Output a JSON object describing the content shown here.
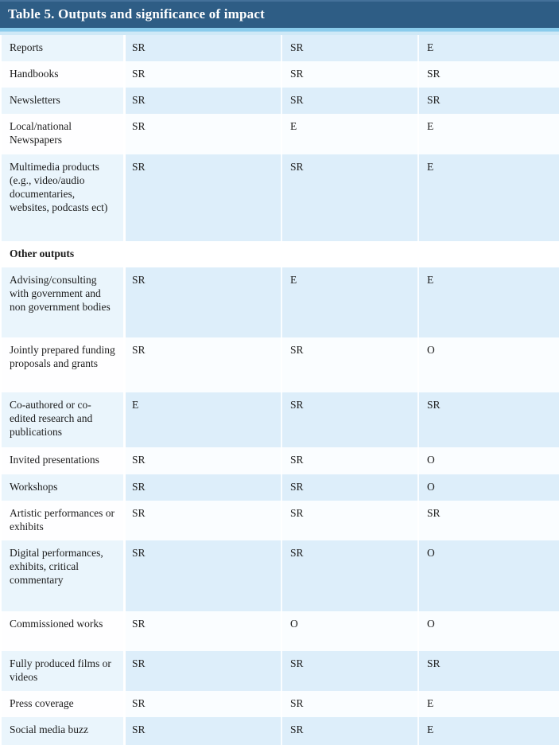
{
  "title_bar": {
    "title": "Table 5. Outputs and significance of impact"
  },
  "table": {
    "value_columns": 3,
    "rows": [
      {
        "type": "data",
        "label": "Reports",
        "values": [
          "SR",
          "SR",
          "E"
        ]
      },
      {
        "type": "data",
        "label": "Handbooks",
        "values": [
          "SR",
          "SR",
          "SR"
        ]
      },
      {
        "type": "data",
        "label": "Newsletters",
        "values": [
          "SR",
          "SR",
          "SR"
        ]
      },
      {
        "type": "data",
        "label": "Local/national Newspapers",
        "values": [
          "SR",
          "E",
          "E"
        ]
      },
      {
        "type": "data",
        "label": "Multimedia products (e.g., video/audio documentaries, websites, podcasts ect)",
        "values": [
          "SR",
          "SR",
          "E"
        ]
      },
      {
        "type": "section",
        "label": "Other outputs",
        "values": []
      },
      {
        "type": "data",
        "label": "Advising/consulting with government and non government bodies",
        "values": [
          "SR",
          "E",
          "E"
        ]
      },
      {
        "type": "data",
        "label": "Jointly prepared funding proposals and grants",
        "values": [
          "SR",
          "SR",
          "O"
        ]
      },
      {
        "type": "data",
        "label": "Co-authored or co-edited research and publications",
        "values": [
          "E",
          "SR",
          "SR"
        ]
      },
      {
        "type": "data",
        "label": "Invited presentations",
        "values": [
          "SR",
          "SR",
          "O"
        ]
      },
      {
        "type": "data",
        "label": "Workshops",
        "values": [
          "SR",
          "SR",
          "O"
        ]
      },
      {
        "type": "data",
        "label": "Artistic performances or exhibits",
        "values": [
          "SR",
          "SR",
          "SR"
        ]
      },
      {
        "type": "data",
        "label": "Digital performances, exhibits, critical commentary",
        "values": [
          "SR",
          "SR",
          "O"
        ]
      },
      {
        "type": "data",
        "label": "Commissioned works",
        "values": [
          "SR",
          "O",
          "O"
        ]
      },
      {
        "type": "data",
        "label": "Fully produced films or videos",
        "values": [
          "SR",
          "SR",
          "SR"
        ]
      },
      {
        "type": "data",
        "label": "Press coverage",
        "values": [
          "SR",
          "SR",
          "E"
        ]
      },
      {
        "type": "data",
        "label": "Social media buzz",
        "values": [
          "SR",
          "SR",
          "E"
        ]
      }
    ]
  },
  "colors": {
    "header_bg": "#2e5d85",
    "header_border": "#44719a",
    "header_text": "#ffffff",
    "stripe_top": "#8accec",
    "stripe_bottom": "#cfe9f7",
    "row_shaded_label": "#eaf5fc",
    "row_shaded_cell": "#ddeefa",
    "row_plain_label": "#fefeff",
    "row_plain_cell": "#fafdff",
    "text": "#1c1c1c"
  }
}
